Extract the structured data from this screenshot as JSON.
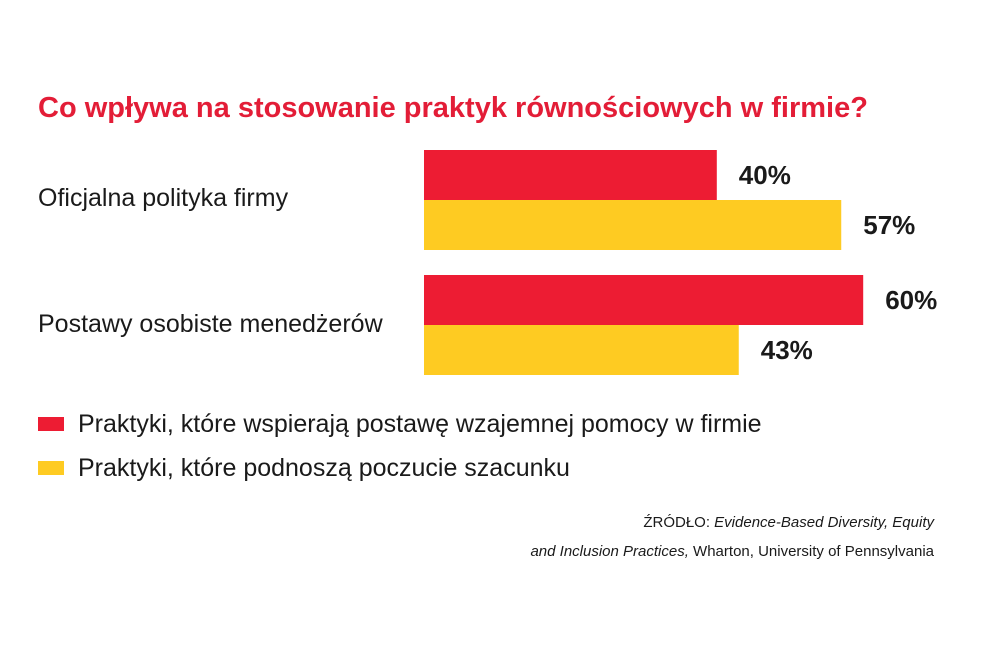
{
  "chart_data": {
    "type": "bar",
    "orientation": "horizontal",
    "title": "Co wpływa na stosowanie praktyk równościowych w firmie?",
    "categories": [
      "Oficjalna polityka firmy",
      "Postawy osobiste menedżerów"
    ],
    "series": [
      {
        "name": "Praktyki, które wspierają postawę wzajemnej pomocy w firmie",
        "values": [
          40,
          60
        ],
        "labels": [
          "40%",
          "60%"
        ],
        "color": "#ed1c33"
      },
      {
        "name": "Praktyki, które podnoszą poczucie szacunku",
        "values": [
          57,
          43
        ],
        "labels": [
          "57%",
          "43%"
        ],
        "color": "#fecb22"
      }
    ],
    "xlim": [
      0,
      60
    ],
    "grid": false,
    "legend_position": "bottom-left"
  },
  "source": {
    "prefix": "ŹRÓDŁO: ",
    "line1_italic": "Evidence-Based Diversity, Equity",
    "line2_italic": "and Inclusion Practices,",
    "line2_rest": " Wharton, University of Pennsylvania"
  }
}
